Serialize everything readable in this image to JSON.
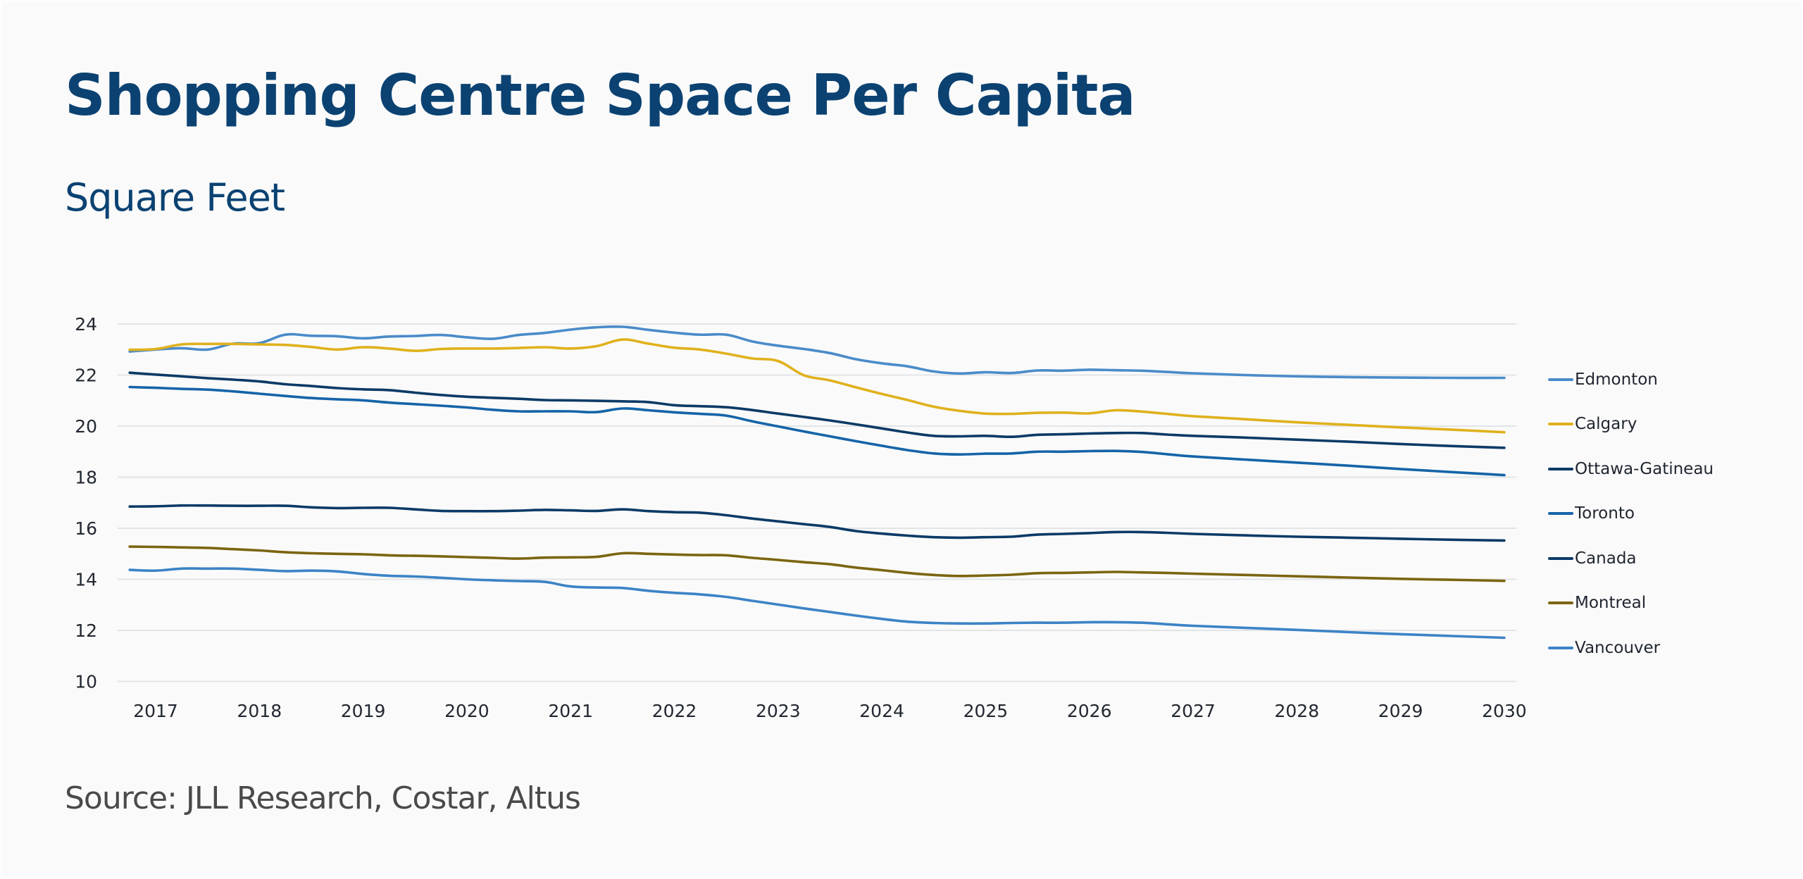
{
  "title": "Shopping Centre Space Per Capita",
  "subtitle": "Square Feet",
  "source": "Source: JLL Research, Costar, Altus",
  "chart_data": {
    "type": "line",
    "title": "Shopping Centre Space Per Capita",
    "subtitle": "Square Feet",
    "xlabel": "",
    "ylabel": "Square Feet",
    "ylim": [
      10,
      24
    ],
    "xlim": [
      2016.75,
      2030
    ],
    "yticks": [
      10,
      12,
      14,
      16,
      18,
      20,
      22,
      24
    ],
    "xticks": [
      "2017",
      "2018",
      "2019",
      "2020",
      "2021",
      "2022",
      "2023",
      "2024",
      "2025",
      "2026",
      "2027",
      "2028",
      "2029",
      "2030"
    ],
    "grid": "horizontal",
    "legend_position": "right",
    "x": [
      2016.75,
      2017.0,
      2017.25,
      2017.5,
      2017.75,
      2018.0,
      2018.25,
      2018.5,
      2018.75,
      2019.0,
      2019.25,
      2019.5,
      2019.75,
      2020.0,
      2020.25,
      2020.5,
      2020.75,
      2021.0,
      2021.25,
      2021.5,
      2021.75,
      2022.0,
      2022.25,
      2022.5,
      2022.75,
      2023.0,
      2023.25,
      2023.5,
      2023.75,
      2024.0,
      2024.25,
      2024.5,
      2024.75,
      2025.0,
      2025.25,
      2025.5,
      2025.75,
      2026.0,
      2026.25,
      2026.5,
      2026.75,
      2027.0,
      2027.5,
      2028.0,
      2028.5,
      2029.0,
      2029.5,
      2030.0
    ],
    "series": [
      {
        "name": "Edmonton",
        "color": "#4a8bc9",
        "values": [
          22.92,
          23.0,
          23.05,
          23.0,
          23.23,
          23.25,
          23.58,
          23.54,
          23.52,
          23.44,
          23.51,
          23.53,
          23.57,
          23.48,
          23.42,
          23.57,
          23.65,
          23.78,
          23.87,
          23.89,
          23.77,
          23.66,
          23.58,
          23.58,
          23.32,
          23.15,
          23.02,
          22.86,
          22.62,
          22.46,
          22.34,
          22.14,
          22.06,
          22.11,
          22.08,
          22.18,
          22.17,
          22.21,
          22.19,
          22.17,
          22.12,
          22.07,
          22.0,
          21.95,
          21.92,
          21.9,
          21.89,
          21.89
        ]
      },
      {
        "name": "Calgary",
        "color": "#e0b11c",
        "values": [
          22.99,
          23.02,
          23.2,
          23.22,
          23.22,
          23.2,
          23.18,
          23.1,
          23.0,
          23.09,
          23.04,
          22.95,
          23.02,
          23.04,
          23.04,
          23.06,
          23.09,
          23.04,
          23.13,
          23.39,
          23.23,
          23.07,
          23.0,
          22.84,
          22.65,
          22.55,
          21.99,
          21.79,
          21.52,
          21.26,
          21.02,
          20.76,
          20.6,
          20.49,
          20.48,
          20.52,
          20.53,
          20.5,
          20.62,
          20.57,
          20.48,
          20.39,
          20.27,
          20.15,
          20.05,
          19.95,
          19.86,
          19.76
        ]
      },
      {
        "name": "Ottawa-Gatineau",
        "color": "#0c3a66",
        "values": [
          22.09,
          22.02,
          21.95,
          21.88,
          21.82,
          21.75,
          21.64,
          21.57,
          21.49,
          21.44,
          21.41,
          21.31,
          21.22,
          21.15,
          21.11,
          21.07,
          21.02,
          21.01,
          20.99,
          20.97,
          20.94,
          20.82,
          20.78,
          20.74,
          20.63,
          20.49,
          20.36,
          20.22,
          20.07,
          19.91,
          19.75,
          19.62,
          19.6,
          19.62,
          19.58,
          19.66,
          19.68,
          19.71,
          19.73,
          19.73,
          19.67,
          19.62,
          19.55,
          19.47,
          19.39,
          19.3,
          19.22,
          19.15
        ]
      },
      {
        "name": "Toronto",
        "color": "#1564a8",
        "values": [
          21.53,
          21.5,
          21.46,
          21.43,
          21.36,
          21.27,
          21.18,
          21.1,
          21.05,
          21.01,
          20.92,
          20.86,
          20.8,
          20.73,
          20.64,
          20.58,
          20.58,
          20.58,
          20.55,
          20.69,
          20.62,
          20.54,
          20.48,
          20.41,
          20.19,
          19.99,
          19.79,
          19.6,
          19.41,
          19.23,
          19.06,
          18.93,
          18.89,
          18.92,
          18.93,
          19.0,
          19.0,
          19.02,
          19.03,
          18.99,
          18.9,
          18.81,
          18.69,
          18.57,
          18.45,
          18.32,
          18.2,
          18.08
        ]
      },
      {
        "name": "Canada",
        "color": "#0c3a66",
        "values": [
          16.85,
          16.86,
          16.89,
          16.89,
          16.88,
          16.88,
          16.88,
          16.82,
          16.79,
          16.8,
          16.8,
          16.74,
          16.68,
          16.67,
          16.67,
          16.69,
          16.72,
          16.7,
          16.68,
          16.74,
          16.67,
          16.63,
          16.61,
          16.51,
          16.38,
          16.27,
          16.16,
          16.05,
          15.89,
          15.79,
          15.71,
          15.65,
          15.63,
          15.65,
          15.67,
          15.75,
          15.78,
          15.81,
          15.85,
          15.85,
          15.82,
          15.78,
          15.72,
          15.67,
          15.63,
          15.59,
          15.55,
          15.52
        ]
      },
      {
        "name": "Montreal",
        "color": "#7b6511",
        "values": [
          15.28,
          15.27,
          15.25,
          15.23,
          15.18,
          15.13,
          15.06,
          15.02,
          15.0,
          14.98,
          14.94,
          14.92,
          14.9,
          14.87,
          14.84,
          14.81,
          14.85,
          14.86,
          14.88,
          15.02,
          15.0,
          14.97,
          14.95,
          14.94,
          14.84,
          14.76,
          14.67,
          14.59,
          14.46,
          14.36,
          14.25,
          14.17,
          14.13,
          14.15,
          14.18,
          14.24,
          14.25,
          14.27,
          14.29,
          14.27,
          14.25,
          14.22,
          14.17,
          14.12,
          14.07,
          14.02,
          13.98,
          13.94
        ]
      },
      {
        "name": "Vancouver",
        "color": "#3c83c6",
        "values": [
          14.37,
          14.34,
          14.42,
          14.42,
          14.42,
          14.37,
          14.32,
          14.34,
          14.31,
          14.21,
          14.14,
          14.11,
          14.06,
          14.0,
          13.96,
          13.93,
          13.9,
          13.72,
          13.68,
          13.66,
          13.55,
          13.47,
          13.41,
          13.31,
          13.16,
          13.01,
          12.86,
          12.72,
          12.58,
          12.45,
          12.34,
          12.29,
          12.27,
          12.27,
          12.29,
          12.3,
          12.3,
          12.32,
          12.32,
          12.3,
          12.24,
          12.18,
          12.1,
          12.02,
          11.93,
          11.85,
          11.78,
          11.71
        ]
      }
    ]
  }
}
